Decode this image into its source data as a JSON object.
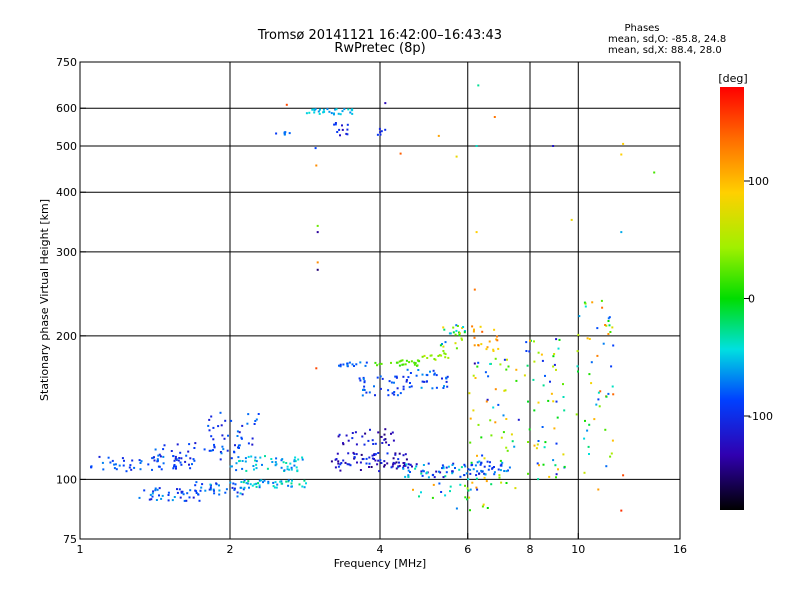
{
  "chart_data": {
    "type": "scatter",
    "title": "Tromsø 20141121 16:42:00–16:43:43",
    "subtitle": "RwPretec (8p)",
    "phases": {
      "heading": "Phases",
      "line_o": "mean, sd,O: -85.8, 24.8",
      "line_x": "mean, sd,X:  88.4, 28.0"
    },
    "xlabel": "Frequency [MHz]",
    "ylabel": "Stationary phase Virtual Height [km]",
    "x_scale": "log",
    "y_scale": "log",
    "xlim": [
      1,
      16
    ],
    "ylim": [
      75,
      750
    ],
    "x_ticks": [
      1,
      2,
      4,
      6,
      8,
      10,
      16
    ],
    "x_tick_labels": [
      "1",
      "2",
      "4",
      "6",
      "8",
      "10",
      "16"
    ],
    "x_grid": [
      2,
      4,
      6,
      8,
      10
    ],
    "y_ticks": [
      75,
      100,
      200,
      300,
      400,
      500,
      600,
      750
    ],
    "y_tick_labels": [
      "75",
      "100",
      "200",
      "300",
      "400",
      "500",
      "600",
      "750"
    ],
    "y_grid": [
      100,
      200,
      300,
      400,
      500,
      600
    ],
    "grid": true,
    "colorbar": {
      "label": "[deg]",
      "range": [
        -180,
        180
      ],
      "ticks": [
        100,
        0,
        -100
      ],
      "tick_labels": [
        "100",
        "0",
        "-100"
      ],
      "placement": "right"
    },
    "clusters": [
      {
        "x": [
          1.05,
          1.7
        ],
        "y": [
          104,
          112
        ],
        "n": 55,
        "phase": [
          -115,
          -70
        ]
      },
      {
        "x": [
          1.3,
          1.75
        ],
        "y": [
          90,
          96
        ],
        "n": 40,
        "phase": [
          -120,
          -60
        ]
      },
      {
        "x": [
          1.4,
          2.1
        ],
        "y": [
          110,
          120
        ],
        "n": 45,
        "phase": [
          -120,
          -70
        ]
      },
      {
        "x": [
          1.7,
          2.15
        ],
        "y": [
          92,
          99
        ],
        "n": 35,
        "phase": [
          -110,
          -50
        ]
      },
      {
        "x": [
          2.0,
          2.8
        ],
        "y": [
          104,
          112
        ],
        "n": 55,
        "phase": [
          -90,
          -30
        ]
      },
      {
        "x": [
          2.1,
          2.9
        ],
        "y": [
          96,
          100
        ],
        "n": 45,
        "phase": [
          -80,
          -20
        ]
      },
      {
        "x": [
          1.8,
          2.3
        ],
        "y": [
          118,
          138
        ],
        "n": 30,
        "phase": [
          -120,
          -70
        ]
      },
      {
        "x": [
          3.2,
          4.6
        ],
        "y": [
          104,
          114
        ],
        "n": 75,
        "phase": [
          -150,
          -90
        ]
      },
      {
        "x": [
          3.3,
          4.3
        ],
        "y": [
          118,
          128
        ],
        "n": 30,
        "phase": [
          -150,
          -100
        ]
      },
      {
        "x": [
          4.3,
          5.9
        ],
        "y": [
          101,
          108
        ],
        "n": 60,
        "phase": [
          -140,
          -30
        ]
      },
      {
        "x": [
          5.9,
          7.3
        ],
        "y": [
          102,
          109
        ],
        "n": 45,
        "phase": [
          -120,
          -60
        ]
      },
      {
        "x": [
          3.6,
          4.6
        ],
        "y": [
          150,
          165
        ],
        "n": 40,
        "phase": [
          -110,
          -70
        ]
      },
      {
        "x": [
          4.5,
          5.5
        ],
        "y": [
          155,
          170
        ],
        "n": 30,
        "phase": [
          -110,
          -60
        ]
      },
      {
        "x": [
          3.3,
          3.8
        ],
        "y": [
          172,
          176
        ],
        "n": 15,
        "phase": [
          -100,
          -60
        ]
      },
      {
        "x": [
          3.9,
          4.9
        ],
        "y": [
          173,
          178
        ],
        "n": 25,
        "phase": [
          10,
          30
        ]
      },
      {
        "x": [
          4.8,
          5.5
        ],
        "y": [
          178,
          186
        ],
        "n": 15,
        "phase": [
          30,
          60
        ]
      },
      {
        "x": [
          5.3,
          6.0
        ],
        "y": [
          188,
          212
        ],
        "n": 25,
        "phase": [
          -80,
          90
        ]
      },
      {
        "x": [
          6.1,
          7.0
        ],
        "y": [
          185,
          210
        ],
        "n": 20,
        "phase": [
          80,
          140
        ]
      },
      {
        "x": [
          6.0,
          7.6
        ],
        "y": [
          95,
          180
        ],
        "n": 60,
        "phase": [
          -120,
          120
        ]
      },
      {
        "x": [
          7.8,
          9.4
        ],
        "y": [
          98,
          200
        ],
        "n": 60,
        "phase": [
          -120,
          110
        ]
      },
      {
        "x": [
          9.8,
          11.8
        ],
        "y": [
          95,
          240
        ],
        "n": 55,
        "phase": [
          -100,
          140
        ]
      },
      {
        "x": [
          4.6,
          6.8
        ],
        "y": [
          86,
          99
        ],
        "n": 25,
        "phase": [
          -100,
          120
        ]
      },
      {
        "x": [
          2.85,
          3.55
        ],
        "y": [
          582,
          598
        ],
        "n": 30,
        "phase": [
          -70,
          -40
        ]
      },
      {
        "x": [
          3.2,
          3.45
        ],
        "y": [
          520,
          560
        ],
        "n": 12,
        "phase": [
          -130,
          -90
        ]
      },
      {
        "x": [
          2.45,
          2.65
        ],
        "y": [
          528,
          535
        ],
        "n": 8,
        "phase": [
          -100,
          -60
        ]
      },
      {
        "x": [
          3.9,
          4.15
        ],
        "y": [
          525,
          545
        ],
        "n": 6,
        "phase": [
          -120,
          -90
        ]
      }
    ],
    "isolated_points": [
      {
        "x": 2.6,
        "y": 610,
        "phase": 150
      },
      {
        "x": 4.1,
        "y": 615,
        "phase": -130
      },
      {
        "x": 6.3,
        "y": 670,
        "phase": -30
      },
      {
        "x": 6.8,
        "y": 575,
        "phase": 130
      },
      {
        "x": 4.4,
        "y": 482,
        "phase": 140
      },
      {
        "x": 5.25,
        "y": 525,
        "phase": 110
      },
      {
        "x": 5.7,
        "y": 475,
        "phase": 80
      },
      {
        "x": 6.25,
        "y": 500,
        "phase": -40
      },
      {
        "x": 8.9,
        "y": 500,
        "phase": -120
      },
      {
        "x": 12.3,
        "y": 505,
        "phase": 90
      },
      {
        "x": 12.2,
        "y": 480,
        "phase": 90
      },
      {
        "x": 14.2,
        "y": 440,
        "phase": 20
      },
      {
        "x": 9.7,
        "y": 350,
        "phase": 80
      },
      {
        "x": 12.2,
        "y": 330,
        "phase": -60
      },
      {
        "x": 2.98,
        "y": 455,
        "phase": 120
      },
      {
        "x": 3.0,
        "y": 340,
        "phase": 30
      },
      {
        "x": 3.0,
        "y": 330,
        "phase": -140
      },
      {
        "x": 3.0,
        "y": 285,
        "phase": 120
      },
      {
        "x": 3.0,
        "y": 275,
        "phase": -150
      },
      {
        "x": 2.97,
        "y": 495,
        "phase": -90
      },
      {
        "x": 6.2,
        "y": 250,
        "phase": 130
      },
      {
        "x": 6.25,
        "y": 330,
        "phase": 90
      },
      {
        "x": 2.98,
        "y": 171,
        "phase": 150
      },
      {
        "x": 12.3,
        "y": 102,
        "phase": 150
      },
      {
        "x": 12.2,
        "y": 86,
        "phase": 160
      },
      {
        "x": 6.2,
        "y": 175,
        "phase": -140
      }
    ]
  }
}
